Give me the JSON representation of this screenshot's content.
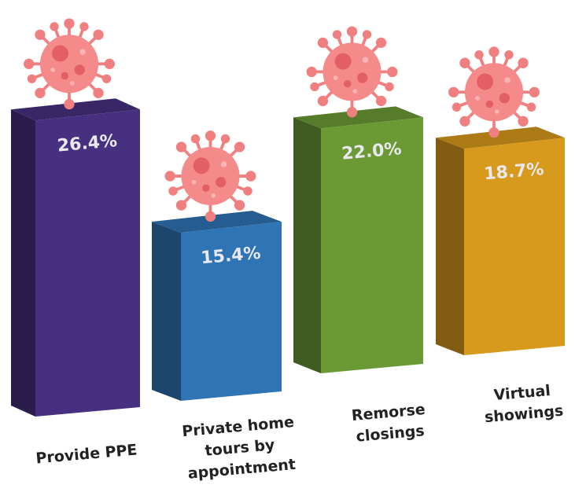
{
  "chart_data": {
    "type": "bar3d",
    "categories": [
      "Provide PPE",
      "Private home tours by appointment",
      "Remorse closings",
      "Virtual showings"
    ],
    "values": [
      26.4,
      15.4,
      22.0,
      18.7
    ],
    "value_labels": [
      "26.4%",
      "15.4%",
      "22.0%",
      "18.7%"
    ],
    "colors": [
      "#46307f",
      "#2f74b5",
      "#6b9a35",
      "#d89a1c"
    ]
  }
}
